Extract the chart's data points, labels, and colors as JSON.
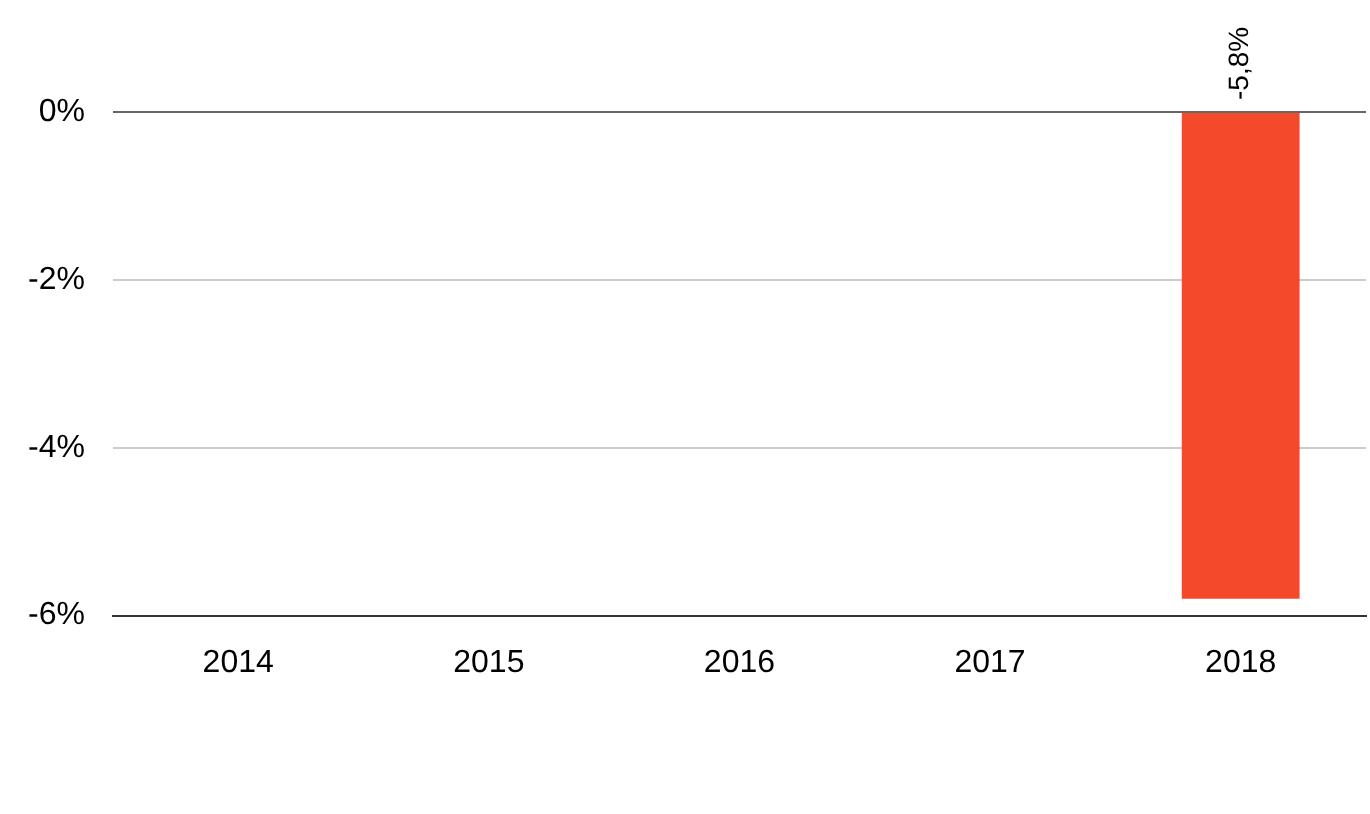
{
  "chart_data": {
    "type": "bar",
    "categories": [
      "2014",
      "2015",
      "2016",
      "2017",
      "2018"
    ],
    "series": [
      {
        "color": "#f44a2b",
        "values": [
          null,
          null,
          null,
          null,
          -5.8
        ],
        "value_labels": [
          null,
          null,
          null,
          null,
          "-5,8%"
        ]
      }
    ],
    "ylim": [
      -6,
      0
    ],
    "yticks": [
      {
        "value": -6,
        "label": "-6%"
      },
      {
        "value": -4,
        "label": "-4%"
      },
      {
        "value": -2,
        "label": "-2%"
      },
      {
        "value": 0,
        "label": "0%"
      }
    ],
    "grid": "y",
    "legend": false
  }
}
